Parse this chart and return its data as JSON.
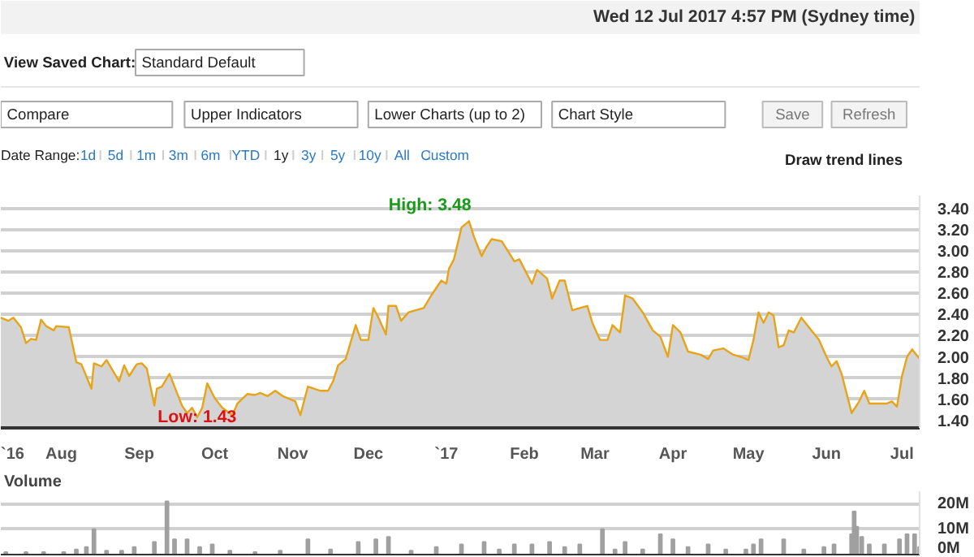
{
  "chart_data": [
    {
      "type": "area",
      "subtitle": "Wed 12 Jul 2017 4:57 PM (Sydney time)",
      "annotations": [
        "View Saved Chart:",
        "Standard Default",
        "Compare",
        "Upper Indicators",
        "Lower Charts (up to 2)",
        "Chart Style",
        "Save",
        "Refresh",
        "Date Range:",
        "1d",
        "5d",
        "1m",
        "3m",
        "6m",
        "YTD",
        "1y",
        "3y",
        "5y",
        "10y",
        "All",
        "Custom",
        "Draw trend lines",
        "High: 3.48",
        {
          "text": "Low: 1.43",
          "x": "2016-09-24",
          "y": 1.43
        }
      ],
      "x": [
        "2016-07-08",
        "2016-07-11",
        "2016-07-13",
        "2016-07-16",
        "2016-07-18",
        "2016-07-20",
        "2016-07-22",
        "2016-07-24",
        "2016-07-26",
        "2016-07-29",
        "2016-07-30",
        "2016-08-04",
        "2016-08-07",
        "2016-08-09",
        "2016-08-13",
        "2016-08-14",
        "2016-08-17",
        "2016-08-19",
        "2016-08-24",
        "2016-08-26",
        "2016-08-28",
        "2016-08-31",
        "2016-09-02",
        "2016-09-04",
        "2016-09-07",
        "2016-09-08",
        "2016-09-10",
        "2016-09-13",
        "2016-09-15",
        "2016-09-18",
        "2016-09-20",
        "2016-09-22",
        "2016-09-24",
        "2016-09-26",
        "2016-09-28",
        "2016-10-01",
        "2016-10-04",
        "2016-10-08",
        "2016-10-10",
        "2016-10-14",
        "2016-10-17",
        "2016-10-19",
        "2016-10-22",
        "2016-10-25",
        "2016-10-28",
        "2016-11-02",
        "2016-11-04",
        "2016-11-07",
        "2016-11-12",
        "2016-11-15",
        "2016-11-17",
        "2016-11-19",
        "2016-11-22",
        "2016-11-26",
        "2016-11-28",
        "2016-12-01",
        "2016-12-03",
        "2016-12-05",
        "2016-12-08",
        "2016-12-09",
        "2016-12-12",
        "2016-12-14",
        "2016-12-17",
        "2016-12-23",
        "2016-12-26",
        "2016-12-30",
        "2017-01-01",
        "2017-01-02",
        "2017-01-04",
        "2017-01-07",
        "2017-01-10",
        "2017-01-12",
        "2017-01-15",
        "2017-01-17",
        "2017-01-19",
        "2017-01-23",
        "2017-01-28",
        "2017-01-30",
        "2017-02-04",
        "2017-02-06",
        "2017-02-10",
        "2017-02-12",
        "2017-02-15",
        "2017-02-17",
        "2017-02-20",
        "2017-02-23",
        "2017-02-26",
        "2017-02-28",
        "2017-03-03",
        "2017-03-06",
        "2017-03-08",
        "2017-03-11",
        "2017-03-13",
        "2017-03-16",
        "2017-03-20",
        "2017-03-24",
        "2017-03-27",
        "2017-03-30",
        "2017-04-01",
        "2017-04-04",
        "2017-04-07",
        "2017-04-12",
        "2017-04-15",
        "2017-04-17",
        "2017-04-21",
        "2017-04-25",
        "2017-04-28",
        "2017-05-01",
        "2017-05-03",
        "2017-05-05",
        "2017-05-07",
        "2017-05-09",
        "2017-05-11",
        "2017-05-13",
        "2017-05-15",
        "2017-05-17",
        "2017-05-19",
        "2017-05-22",
        "2017-05-25",
        "2017-05-29",
        "2017-06-01",
        "2017-06-03",
        "2017-06-05",
        "2017-06-07",
        "2017-06-11",
        "2017-06-14",
        "2017-06-16",
        "2017-06-18",
        "2017-06-22",
        "2017-06-25",
        "2017-06-27",
        "2017-06-29",
        "2017-07-01",
        "2017-07-03",
        "2017-07-05",
        "2017-07-08"
      ],
      "series": [
        {
          "color": "#e8a317",
          "values": [
            2.37,
            2.34,
            2.37,
            2.28,
            2.13,
            2.17,
            2.16,
            2.35,
            2.29,
            2.25,
            2.29,
            2.28,
            1.95,
            1.93,
            1.7,
            1.94,
            1.91,
            1.97,
            1.77,
            1.92,
            1.82,
            1.93,
            1.94,
            1.89,
            1.54,
            1.7,
            1.72,
            1.84,
            1.72,
            1.54,
            1.47,
            1.52,
            1.43,
            1.52,
            1.75,
            1.61,
            1.52,
            1.45,
            1.56,
            1.65,
            1.64,
            1.66,
            1.63,
            1.68,
            1.63,
            1.58,
            1.45,
            1.72,
            1.68,
            1.68,
            1.77,
            1.92,
            1.98,
            2.3,
            2.16,
            2.16,
            2.46,
            2.37,
            2.21,
            2.48,
            2.48,
            2.34,
            2.42,
            2.46,
            2.58,
            2.72,
            2.69,
            2.83,
            2.92,
            3.22,
            3.28,
            3.13,
            2.95,
            3.04,
            3.11,
            3.09,
            2.9,
            2.92,
            2.69,
            2.82,
            2.74,
            2.55,
            2.72,
            2.72,
            2.44,
            2.46,
            2.48,
            2.32,
            2.16,
            2.16,
            2.3,
            2.23,
            2.58,
            2.55,
            2.42,
            2.25,
            2.19,
            2.0,
            2.3,
            2.23,
            2.05,
            2.02,
            1.98,
            2.06,
            2.08,
            2.02,
            2.0,
            1.97,
            2.16,
            2.42,
            2.32,
            2.42,
            2.39,
            2.09,
            2.11,
            2.25,
            2.23,
            2.37,
            2.28,
            2.16,
            2.0,
            1.91,
            1.96,
            1.84,
            1.47,
            1.58,
            1.68,
            1.56,
            1.56,
            1.56,
            1.58,
            1.53,
            1.82,
            2.0,
            2.07,
            1.98
          ]
        }
      ],
      "xlim": [
        "2016-07-08",
        "2017-07-08"
      ],
      "xticks": [
        {
          "value": "2016-07-12",
          "label": "`16"
        },
        {
          "value": "2016-08-01",
          "label": "Aug"
        },
        {
          "value": "2016-09-01",
          "label": "Sep"
        },
        {
          "value": "2016-10-01",
          "label": "Oct"
        },
        {
          "value": "2016-11-01",
          "label": "Nov"
        },
        {
          "value": "2016-12-01",
          "label": "Dec"
        },
        {
          "value": "2017-01-01",
          "label": "`17"
        },
        {
          "value": "2017-02-01",
          "label": "Feb"
        },
        {
          "value": "2017-03-01",
          "label": "Mar"
        },
        {
          "value": "2017-04-01",
          "label": "Apr"
        },
        {
          "value": "2017-05-01",
          "label": "May"
        },
        {
          "value": "2017-06-01",
          "label": "Jun"
        },
        {
          "value": "2017-07-01",
          "label": "Jul"
        }
      ],
      "ylim": [
        1.33,
        3.52
      ],
      "yticks": [
        {
          "value": 1.4,
          "label": "1.40"
        },
        {
          "value": 1.6,
          "label": "1.60"
        },
        {
          "value": 1.8,
          "label": "1.80"
        },
        {
          "value": 2.0,
          "label": "2.00"
        },
        {
          "value": 2.2,
          "label": "2.20"
        },
        {
          "value": 2.4,
          "label": "2.40"
        },
        {
          "value": 2.6,
          "label": "2.60"
        },
        {
          "value": 2.8,
          "label": "2.80"
        },
        {
          "value": 3.0,
          "label": "3.00"
        },
        {
          "value": 3.2,
          "label": "3.20"
        },
        {
          "value": 3.4,
          "label": "3.40"
        }
      ],
      "grid": "y"
    },
    {
      "type": "bar",
      "title": "Volume",
      "color": "#a0a0a0",
      "x": [
        "2016-07-10",
        "2016-07-18",
        "2016-07-25",
        "2016-08-02",
        "2016-08-07",
        "2016-08-11",
        "2016-08-14",
        "2016-08-19",
        "2016-08-25",
        "2016-08-30",
        "2016-09-07",
        "2016-09-12",
        "2016-09-15",
        "2016-09-20",
        "2016-09-25",
        "2016-09-30",
        "2016-10-07",
        "2016-10-17",
        "2016-10-27",
        "2016-11-07",
        "2016-11-16",
        "2016-11-27",
        "2016-12-04",
        "2016-12-09",
        "2016-12-18",
        "2016-12-28",
        "2017-01-07",
        "2017-01-16",
        "2017-01-22",
        "2017-01-28",
        "2017-02-04",
        "2017-02-11",
        "2017-02-17",
        "2017-02-23",
        "2017-03-04",
        "2017-03-09",
        "2017-03-13",
        "2017-03-20",
        "2017-03-27",
        "2017-04-01",
        "2017-04-07",
        "2017-04-15",
        "2017-04-22",
        "2017-04-30",
        "2017-05-03",
        "2017-05-06",
        "2017-05-15",
        "2017-05-23",
        "2017-05-31",
        "2017-06-04",
        "2017-06-11",
        "2017-06-12",
        "2017-06-13",
        "2017-06-15",
        "2017-06-18",
        "2017-06-24",
        "2017-06-30",
        "2017-07-03",
        "2017-07-06",
        "2017-07-08"
      ],
      "values": [
        1,
        1,
        1,
        1,
        2,
        3,
        10,
        1.5,
        1.5,
        3,
        5,
        21,
        6,
        6,
        3,
        4,
        1.5,
        1,
        1.5,
        6,
        2,
        5,
        6,
        7,
        1.5,
        3,
        4,
        5,
        2,
        4,
        4,
        5,
        3,
        4,
        10,
        2,
        5,
        2,
        8,
        6,
        3,
        4,
        2,
        2,
        4,
        6,
        6,
        2,
        3,
        4,
        8,
        17,
        11,
        7,
        4,
        4,
        6,
        8,
        8,
        3
      ],
      "xlim": [
        "2016-07-08",
        "2017-07-08"
      ],
      "ylim": [
        0,
        25
      ],
      "yticks": [
        {
          "value": 0,
          "label": "0M"
        },
        {
          "value": 10,
          "label": "10M"
        },
        {
          "value": 20,
          "label": "20M"
        }
      ],
      "grid": "y",
      "tick_labels": "y"
    }
  ]
}
